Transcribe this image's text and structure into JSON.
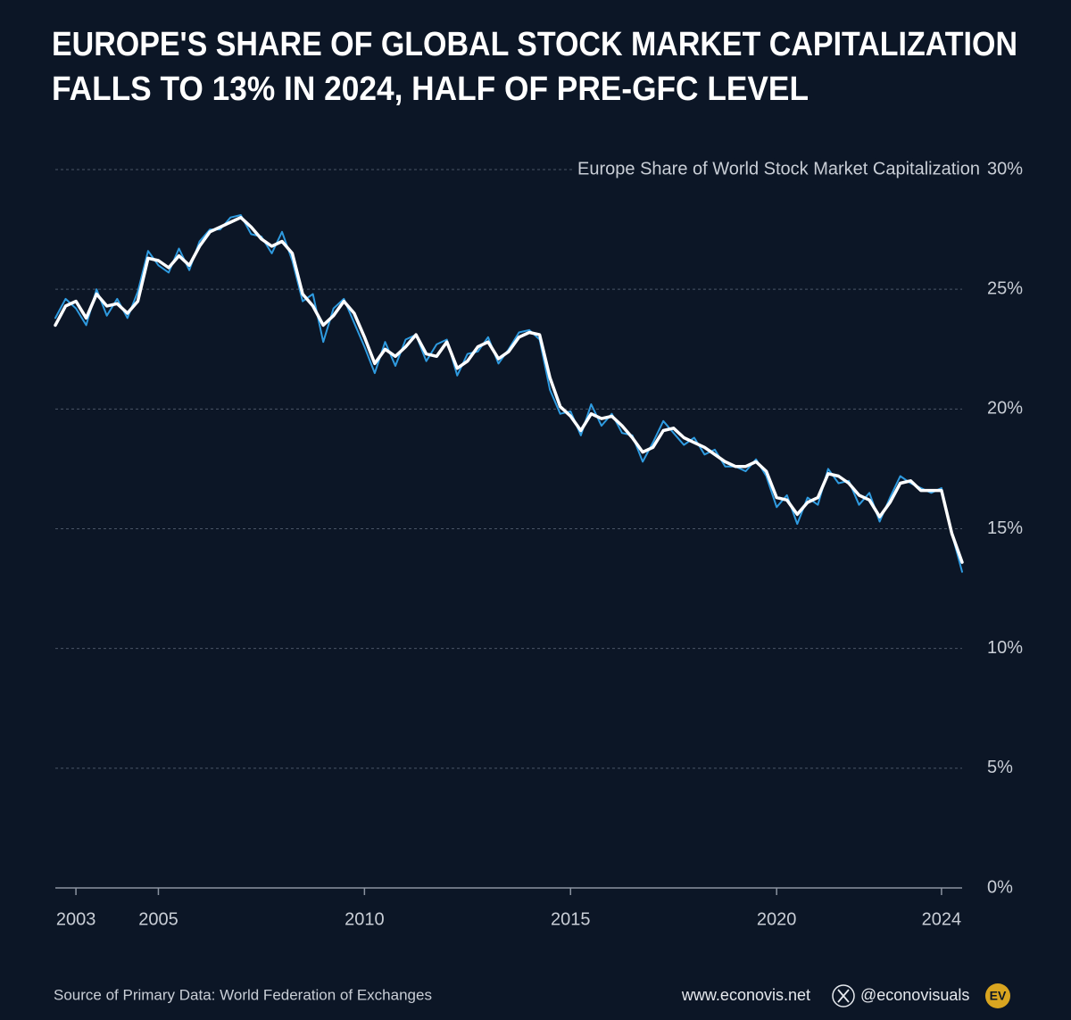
{
  "chart_data": {
    "type": "line",
    "title": [
      "EUROPE'S SHARE OF GLOBAL STOCK MARKET CAPITALIZATION",
      "FALLS TO 13% IN 2024, HALF OF PRE-GFC LEVEL"
    ],
    "y_label": "Europe Share of World Stock Market Capitalization",
    "source": "Source of Primary Data: World Federation of Exchanges",
    "website": "www.econovis.net",
    "handle": "@econovisuals",
    "logo": "EV",
    "x": [
      2002.5,
      2002.75,
      2003,
      2003.25,
      2003.5,
      2003.75,
      2004,
      2004.25,
      2004.5,
      2004.75,
      2005,
      2005.25,
      2005.5,
      2005.75,
      2006,
      2006.25,
      2006.5,
      2006.75,
      2007,
      2007.25,
      2007.5,
      2007.75,
      2008,
      2008.25,
      2008.5,
      2008.75,
      2009,
      2009.25,
      2009.5,
      2009.75,
      2010,
      2010.25,
      2010.5,
      2010.75,
      2011,
      2011.25,
      2011.5,
      2011.75,
      2012,
      2012.25,
      2012.5,
      2012.75,
      2013,
      2013.25,
      2013.5,
      2013.75,
      2014,
      2014.25,
      2014.5,
      2014.75,
      2015,
      2015.25,
      2015.5,
      2015.75,
      2016,
      2016.25,
      2016.5,
      2016.75,
      2017,
      2017.25,
      2017.5,
      2017.75,
      2018,
      2018.25,
      2018.5,
      2018.75,
      2019,
      2019.25,
      2019.5,
      2019.75,
      2020,
      2020.25,
      2020.5,
      2020.75,
      2021,
      2021.25,
      2021.5,
      2021.75,
      2022,
      2022.25,
      2022.5,
      2022.75,
      2023,
      2023.25,
      2023.5,
      2023.75,
      2024,
      2024.25,
      2024.5
    ],
    "series": [
      {
        "color": "#2f9be0",
        "width": 2,
        "values": [
          23.8,
          24.6,
          24.2,
          23.5,
          25.0,
          23.9,
          24.6,
          23.8,
          24.9,
          26.6,
          26.0,
          25.7,
          26.7,
          25.8,
          27.0,
          27.5,
          27.5,
          28.0,
          28.1,
          27.3,
          27.2,
          26.5,
          27.4,
          26.2,
          24.5,
          24.8,
          22.8,
          24.2,
          24.6,
          23.6,
          22.6,
          21.5,
          22.8,
          21.8,
          22.9,
          23.1,
          22.0,
          22.7,
          22.9,
          21.4,
          22.3,
          22.4,
          23.0,
          21.9,
          22.5,
          23.2,
          23.3,
          22.9,
          20.8,
          19.8,
          19.9,
          18.9,
          20.2,
          19.3,
          19.8,
          19.0,
          18.9,
          17.8,
          18.6,
          19.5,
          19.0,
          18.5,
          18.8,
          18.1,
          18.3,
          17.6,
          17.6,
          17.4,
          17.9,
          17.2,
          15.9,
          16.4,
          15.2,
          16.3,
          16.0,
          17.5,
          16.9,
          17.0,
          16.0,
          16.5,
          15.3,
          16.3,
          17.2,
          16.9,
          16.7,
          16.5,
          16.7,
          14.8,
          13.2
        ]
      },
      {
        "color": "#ffffff",
        "width": 3.5,
        "values": [
          23.5,
          24.3,
          24.5,
          23.8,
          24.8,
          24.3,
          24.4,
          24.0,
          24.5,
          26.3,
          26.2,
          25.9,
          26.4,
          26.0,
          26.8,
          27.4,
          27.6,
          27.8,
          28.0,
          27.6,
          27.1,
          26.8,
          27.0,
          26.5,
          24.8,
          24.3,
          23.5,
          23.9,
          24.5,
          24.0,
          23.0,
          21.9,
          22.5,
          22.2,
          22.6,
          23.1,
          22.3,
          22.2,
          22.8,
          21.7,
          22.0,
          22.6,
          22.8,
          22.1,
          22.4,
          23.0,
          23.2,
          23.1,
          21.3,
          20.1,
          19.7,
          19.1,
          19.8,
          19.6,
          19.7,
          19.3,
          18.8,
          18.2,
          18.4,
          19.1,
          19.2,
          18.8,
          18.6,
          18.4,
          18.1,
          17.8,
          17.6,
          17.6,
          17.8,
          17.4,
          16.3,
          16.2,
          15.6,
          16.1,
          16.3,
          17.3,
          17.2,
          16.9,
          16.4,
          16.2,
          15.5,
          16.1,
          16.9,
          17.0,
          16.6,
          16.6,
          16.6,
          14.8,
          13.6
        ]
      }
    ],
    "xlim": [
      2002.5,
      2024.5
    ],
    "xticks": [
      2003,
      2005,
      2010,
      2015,
      2020,
      2024
    ],
    "ylim": [
      0,
      30
    ],
    "yticks": [
      {
        "value": 0,
        "label": "0%"
      },
      {
        "value": 5,
        "label": "5%"
      },
      {
        "value": 10,
        "label": "10%"
      },
      {
        "value": 15,
        "label": "15%"
      },
      {
        "value": 20,
        "label": "20%"
      },
      {
        "value": 25,
        "label": "25%"
      },
      {
        "value": 30,
        "label": "30%"
      }
    ],
    "grid": true
  }
}
